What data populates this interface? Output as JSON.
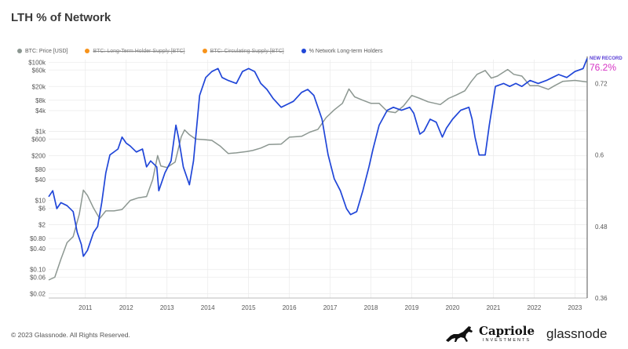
{
  "title": "LTH % of Network",
  "legend": [
    {
      "label": "BTC: Price [USD]",
      "color": "#8c9791",
      "active": true
    },
    {
      "label": "BTC: Long-Term Holder Supply [BTC]",
      "color": "#f7931a",
      "active": false
    },
    {
      "label": "BTC: Circulating Supply [BTC]",
      "color": "#f7931a",
      "active": false
    },
    {
      "label": "% Network Long-term Holders",
      "color": "#2046d8",
      "active": true
    }
  ],
  "annotation": {
    "label": "NEW RECORD",
    "value": "76.2%"
  },
  "footer": {
    "copyright": "© 2023 Glassnode. All Rights Reserved."
  },
  "brands": {
    "capriole": "Capriole",
    "capriole_sub": "INVESTMENTS",
    "glassnode": "glassnode"
  },
  "chart_data": {
    "type": "line",
    "title": "LTH % of Network",
    "x_tick_labels": [
      "2011",
      "2012",
      "2013",
      "2014",
      "2015",
      "2016",
      "2017",
      "2018",
      "2019",
      "2020",
      "2021",
      "2022",
      "2023"
    ],
    "y_left_tick_labels": [
      "$100k",
      "$60k",
      "$20k",
      "$8k",
      "$4k",
      "$1k",
      "$600",
      "$200",
      "$80",
      "$40",
      "$10",
      "$6",
      "$2",
      "$0.80",
      "$0.40",
      "$0.10",
      "$0.06",
      "$0.02"
    ],
    "y_left_scale": "log",
    "y_left_range": [
      0.015,
      120000
    ],
    "y_right_tick_labels": [
      "0.72",
      "0.6",
      "0.48",
      "0.36"
    ],
    "y_right_range": [
      0.36,
      0.76
    ],
    "x_range": [
      2010.6,
      2023.8
    ],
    "grid": true,
    "series": [
      {
        "name": "BTC: Price [USD]",
        "axis": "left",
        "color": "#8c9791",
        "points": [
          [
            2010.6,
            0.05
          ],
          [
            2010.75,
            0.06
          ],
          [
            2010.9,
            0.2
          ],
          [
            2011.05,
            0.6
          ],
          [
            2011.2,
            0.9
          ],
          [
            2011.35,
            4
          ],
          [
            2011.45,
            20
          ],
          [
            2011.55,
            14
          ],
          [
            2011.7,
            6
          ],
          [
            2011.85,
            3
          ],
          [
            2012.0,
            5
          ],
          [
            2012.2,
            5
          ],
          [
            2012.4,
            5.5
          ],
          [
            2012.6,
            10
          ],
          [
            2012.8,
            12
          ],
          [
            2013.0,
            13
          ],
          [
            2013.15,
            40
          ],
          [
            2013.27,
            200
          ],
          [
            2013.35,
            100
          ],
          [
            2013.5,
            90
          ],
          [
            2013.7,
            130
          ],
          [
            2013.85,
            700
          ],
          [
            2013.93,
            1100
          ],
          [
            2014.05,
            800
          ],
          [
            2014.2,
            600
          ],
          [
            2014.4,
            580
          ],
          [
            2014.6,
            550
          ],
          [
            2014.8,
            380
          ],
          [
            2015.0,
            230
          ],
          [
            2015.2,
            240
          ],
          [
            2015.45,
            260
          ],
          [
            2015.6,
            280
          ],
          [
            2015.8,
            330
          ],
          [
            2016.0,
            420
          ],
          [
            2016.3,
            430
          ],
          [
            2016.5,
            680
          ],
          [
            2016.8,
            720
          ],
          [
            2017.0,
            950
          ],
          [
            2017.2,
            1150
          ],
          [
            2017.4,
            2500
          ],
          [
            2017.6,
            4200
          ],
          [
            2017.8,
            6500
          ],
          [
            2017.96,
            17000
          ],
          [
            2018.1,
            10000
          ],
          [
            2018.3,
            8000
          ],
          [
            2018.5,
            6500
          ],
          [
            2018.7,
            6500
          ],
          [
            2018.9,
            3800
          ],
          [
            2019.1,
            3500
          ],
          [
            2019.3,
            5500
          ],
          [
            2019.5,
            11000
          ],
          [
            2019.7,
            9000
          ],
          [
            2019.9,
            7200
          ],
          [
            2020.2,
            6000
          ],
          [
            2020.4,
            9000
          ],
          [
            2020.6,
            11500
          ],
          [
            2020.8,
            15000
          ],
          [
            2020.96,
            28000
          ],
          [
            2021.1,
            45000
          ],
          [
            2021.3,
            58000
          ],
          [
            2021.45,
            35000
          ],
          [
            2021.6,
            40000
          ],
          [
            2021.85,
            62000
          ],
          [
            2022.0,
            45000
          ],
          [
            2022.2,
            40000
          ],
          [
            2022.4,
            21000
          ],
          [
            2022.6,
            21000
          ],
          [
            2022.85,
            16500
          ],
          [
            2023.0,
            21000
          ],
          [
            2023.2,
            28000
          ],
          [
            2023.5,
            30000
          ],
          [
            2023.8,
            27000
          ]
        ]
      },
      {
        "name": "% Network Long-term Holders",
        "axis": "right",
        "color": "#2046d8",
        "points": [
          [
            2010.6,
            0.53
          ],
          [
            2010.7,
            0.54
          ],
          [
            2010.8,
            0.51
          ],
          [
            2010.9,
            0.52
          ],
          [
            2011.05,
            0.515
          ],
          [
            2011.2,
            0.505
          ],
          [
            2011.3,
            0.47
          ],
          [
            2011.4,
            0.45
          ],
          [
            2011.45,
            0.43
          ],
          [
            2011.55,
            0.44
          ],
          [
            2011.7,
            0.47
          ],
          [
            2011.8,
            0.48
          ],
          [
            2011.9,
            0.52
          ],
          [
            2012.0,
            0.57
          ],
          [
            2012.1,
            0.6
          ],
          [
            2012.3,
            0.61
          ],
          [
            2012.4,
            0.63
          ],
          [
            2012.5,
            0.62
          ],
          [
            2012.6,
            0.615
          ],
          [
            2012.75,
            0.605
          ],
          [
            2012.9,
            0.61
          ],
          [
            2013.0,
            0.58
          ],
          [
            2013.1,
            0.59
          ],
          [
            2013.25,
            0.58
          ],
          [
            2013.3,
            0.54
          ],
          [
            2013.45,
            0.57
          ],
          [
            2013.6,
            0.59
          ],
          [
            2013.72,
            0.65
          ],
          [
            2013.78,
            0.63
          ],
          [
            2013.9,
            0.58
          ],
          [
            2014.05,
            0.55
          ],
          [
            2014.15,
            0.59
          ],
          [
            2014.3,
            0.7
          ],
          [
            2014.45,
            0.73
          ],
          [
            2014.6,
            0.74
          ],
          [
            2014.75,
            0.745
          ],
          [
            2014.85,
            0.73
          ],
          [
            2015.0,
            0.725
          ],
          [
            2015.2,
            0.72
          ],
          [
            2015.35,
            0.74
          ],
          [
            2015.5,
            0.745
          ],
          [
            2015.65,
            0.74
          ],
          [
            2015.8,
            0.72
          ],
          [
            2015.95,
            0.71
          ],
          [
            2016.1,
            0.695
          ],
          [
            2016.3,
            0.68
          ],
          [
            2016.45,
            0.685
          ],
          [
            2016.6,
            0.69
          ],
          [
            2016.8,
            0.705
          ],
          [
            2016.95,
            0.71
          ],
          [
            2017.1,
            0.7
          ],
          [
            2017.2,
            0.68
          ],
          [
            2017.3,
            0.66
          ],
          [
            2017.45,
            0.6
          ],
          [
            2017.6,
            0.56
          ],
          [
            2017.75,
            0.54
          ],
          [
            2017.9,
            0.51
          ],
          [
            2018.0,
            0.5
          ],
          [
            2018.15,
            0.505
          ],
          [
            2018.3,
            0.54
          ],
          [
            2018.45,
            0.58
          ],
          [
            2018.55,
            0.61
          ],
          [
            2018.7,
            0.65
          ],
          [
            2018.9,
            0.675
          ],
          [
            2019.05,
            0.68
          ],
          [
            2019.25,
            0.675
          ],
          [
            2019.45,
            0.68
          ],
          [
            2019.55,
            0.67
          ],
          [
            2019.7,
            0.635
          ],
          [
            2019.8,
            0.64
          ],
          [
            2019.95,
            0.66
          ],
          [
            2020.1,
            0.655
          ],
          [
            2020.25,
            0.63
          ],
          [
            2020.35,
            0.645
          ],
          [
            2020.5,
            0.66
          ],
          [
            2020.7,
            0.675
          ],
          [
            2020.9,
            0.68
          ],
          [
            2020.98,
            0.66
          ],
          [
            2021.05,
            0.63
          ],
          [
            2021.15,
            0.6
          ],
          [
            2021.3,
            0.6
          ],
          [
            2021.4,
            0.65
          ],
          [
            2021.55,
            0.715
          ],
          [
            2021.75,
            0.72
          ],
          [
            2021.9,
            0.715
          ],
          [
            2022.05,
            0.72
          ],
          [
            2022.2,
            0.715
          ],
          [
            2022.4,
            0.725
          ],
          [
            2022.6,
            0.72
          ],
          [
            2022.8,
            0.725
          ],
          [
            2022.95,
            0.73
          ],
          [
            2023.1,
            0.735
          ],
          [
            2023.3,
            0.73
          ],
          [
            2023.5,
            0.74
          ],
          [
            2023.7,
            0.745
          ],
          [
            2023.8,
            0.762
          ]
        ]
      }
    ]
  }
}
